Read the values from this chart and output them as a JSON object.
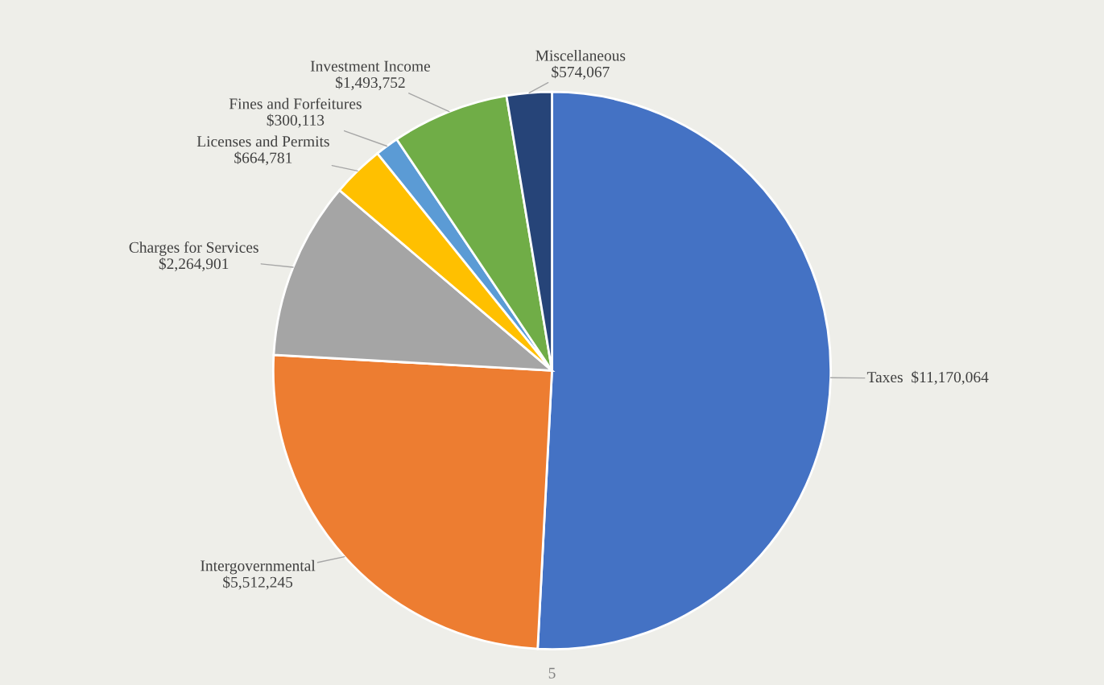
{
  "chart_data": {
    "type": "pie",
    "categories": [
      "Taxes",
      "Intergovernmental",
      "Charges for Services",
      "Licenses and Permits",
      "Fines and Forfeitures",
      "Investment Income",
      "Miscellaneous"
    ],
    "values": [
      11170064,
      5512245,
      2264901,
      664781,
      300113,
      1493752,
      574067
    ],
    "value_labels": [
      "$11,170,064",
      "$5,512,245",
      "$2,264,901",
      "$664,781",
      "$300,113",
      "$1,493,752",
      "$574,067"
    ],
    "colors": [
      "#4472c4",
      "#ed7d31",
      "#a5a5a5",
      "#ffc000",
      "#5b9bd5",
      "#70ad47",
      "#264478"
    ],
    "annotations": [
      "5"
    ],
    "legend": false
  }
}
